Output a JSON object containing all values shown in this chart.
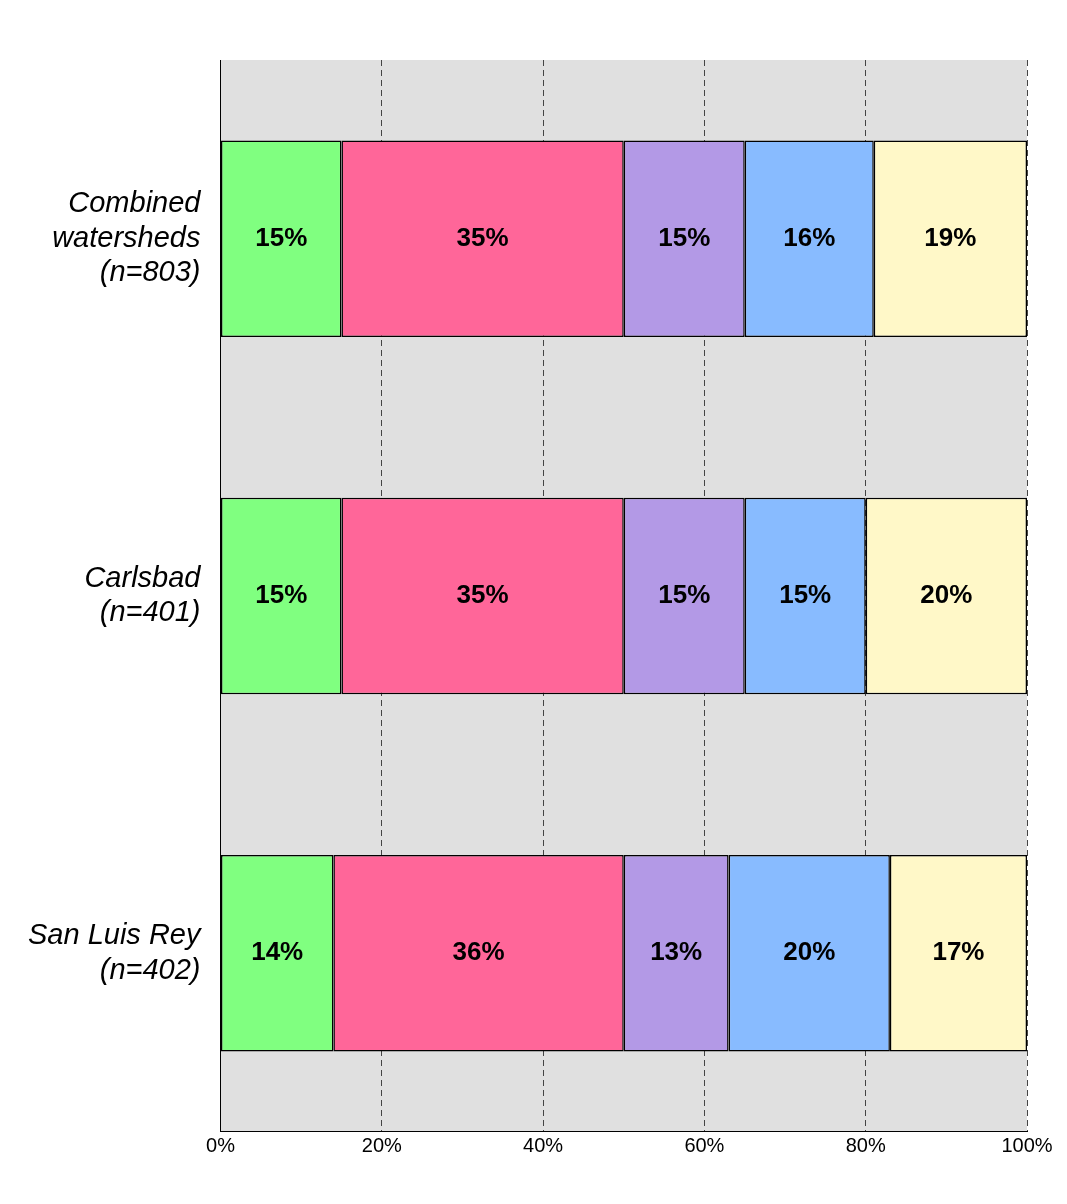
{
  "chart_data": {
    "type": "bar",
    "orientation": "horizontal",
    "stacked": true,
    "categories": [
      "Combined watersheds (n=803)",
      "Carlsbad (n=401)",
      "San Luis Rey (n=402)"
    ],
    "series": [
      {
        "color": "#80ff80",
        "values": [
          15,
          15,
          14
        ],
        "value_labels": [
          "15%",
          "15%",
          "14%"
        ]
      },
      {
        "color": "#ff6699",
        "values": [
          35,
          35,
          36
        ],
        "value_labels": [
          "35%",
          "35%",
          "36%"
        ]
      },
      {
        "color": "#b399e6",
        "values": [
          15,
          15,
          13
        ],
        "value_labels": [
          "15%",
          "15%",
          "13%"
        ]
      },
      {
        "color": "#88bbff",
        "values": [
          16,
          15,
          20
        ],
        "value_labels": [
          "16%",
          "15%",
          "20%"
        ]
      },
      {
        "color": "#fff8c8",
        "values": [
          19,
          20,
          17
        ],
        "value_labels": [
          "19%",
          "20%",
          "17%"
        ]
      }
    ],
    "xlim": [
      0,
      100
    ],
    "xticks": [
      {
        "value": 0,
        "label": "0%"
      },
      {
        "value": 20,
        "label": "20%"
      },
      {
        "value": 40,
        "label": "40%"
      },
      {
        "value": 60,
        "label": "60%"
      },
      {
        "value": 80,
        "label": "80%"
      },
      {
        "value": 100,
        "label": "100%"
      }
    ],
    "grid": "x",
    "legend": false
  }
}
